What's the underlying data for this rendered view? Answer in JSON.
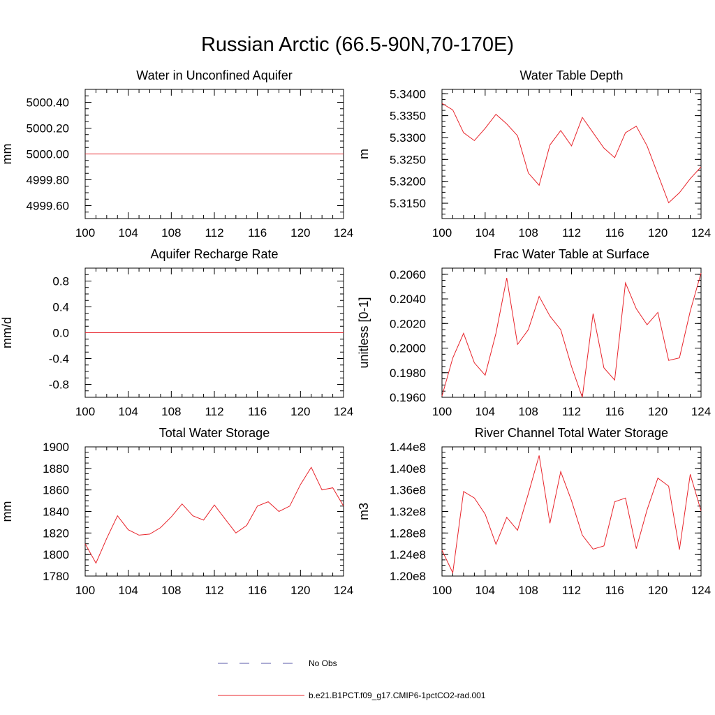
{
  "title": "Russian Arctic (66.5-90N,70-170E)",
  "legend": {
    "entries": [
      {
        "label": "No Obs",
        "color": "#5a5aa8",
        "dashed": true
      },
      {
        "label": "b.e21.B1PCT.f09_g17.CMIP6-1pctCO2-rad.001",
        "color": "#e8242b",
        "dashed": false
      }
    ]
  },
  "chart_data": [
    {
      "type": "line",
      "title": "Water in Unconfined Aquifer",
      "ylabel": "mm",
      "xlim": [
        100,
        124
      ],
      "ylim": [
        4999.5,
        5000.5
      ],
      "xticks": [
        100,
        104,
        108,
        112,
        116,
        120,
        124
      ],
      "yticks": [
        4999.6,
        4999.8,
        5000.0,
        5000.2,
        5000.4
      ],
      "yminor": [
        4999.5,
        4999.55,
        4999.6,
        4999.65,
        4999.7,
        4999.75,
        4999.8,
        4999.85,
        4999.9,
        4999.95,
        5000.0,
        5000.05,
        5000.1,
        5000.15,
        5000.2,
        5000.25,
        5000.3,
        5000.35,
        5000.4,
        5000.45,
        5000.5
      ],
      "ydecimals": 2,
      "series": [
        {
          "color": "#e8242b",
          "x": [
            100,
            101,
            102,
            103,
            104,
            105,
            106,
            107,
            108,
            109,
            110,
            111,
            112,
            113,
            114,
            115,
            116,
            117,
            118,
            119,
            120,
            121,
            122,
            123,
            124
          ],
          "y": [
            5000,
            5000,
            5000,
            5000,
            5000,
            5000,
            5000,
            5000,
            5000,
            5000,
            5000,
            5000,
            5000,
            5000,
            5000,
            5000,
            5000,
            5000,
            5000,
            5000,
            5000,
            5000,
            5000,
            5000,
            5000
          ]
        }
      ]
    },
    {
      "type": "line",
      "title": "Water Table Depth",
      "ylabel": "m",
      "xlim": [
        100,
        124
      ],
      "ylim": [
        5.3115,
        5.341
      ],
      "xticks": [
        100,
        104,
        108,
        112,
        116,
        120,
        124
      ],
      "yticks": [
        5.315,
        5.32,
        5.325,
        5.33,
        5.335,
        5.34
      ],
      "yminor": [
        5.3125,
        5.3137,
        5.315,
        5.3162,
        5.3175,
        5.3187,
        5.32,
        5.3212,
        5.3225,
        5.3237,
        5.325,
        5.3262,
        5.3275,
        5.3287,
        5.33,
        5.3312,
        5.3325,
        5.3337,
        5.335,
        5.3362,
        5.3375,
        5.3387,
        5.34
      ],
      "ydecimals": 4,
      "series": [
        {
          "color": "#e8242b",
          "x": [
            100,
            101,
            102,
            103,
            104,
            105,
            106,
            107,
            108,
            109,
            110,
            111,
            112,
            113,
            114,
            115,
            116,
            117,
            118,
            119,
            120,
            121,
            122,
            123,
            124
          ],
          "y": [
            5.3378,
            5.3363,
            5.3311,
            5.3293,
            5.3321,
            5.3353,
            5.3331,
            5.3304,
            5.3219,
            5.3191,
            5.3283,
            5.3316,
            5.3281,
            5.3346,
            5.3311,
            5.3276,
            5.3254,
            5.3311,
            5.3326,
            5.3281,
            5.3216,
            5.3151,
            5.3174,
            5.3206,
            5.3233
          ]
        }
      ]
    },
    {
      "type": "line",
      "title": "Aquifer Recharge Rate",
      "ylabel": "mm/d",
      "xlim": [
        100,
        124
      ],
      "ylim": [
        -1.0,
        1.0
      ],
      "xticks": [
        100,
        104,
        108,
        112,
        116,
        120,
        124
      ],
      "yticks": [
        -0.8,
        -0.4,
        0.0,
        0.4,
        0.8
      ],
      "yminor": [
        -1.0,
        -0.9,
        -0.8,
        -0.7,
        -0.6,
        -0.5,
        -0.4,
        -0.3,
        -0.2,
        -0.1,
        0.0,
        0.1,
        0.2,
        0.3,
        0.4,
        0.5,
        0.6,
        0.7,
        0.8,
        0.9,
        1.0
      ],
      "ydecimals": 1,
      "series": [
        {
          "color": "#e8242b",
          "x": [
            100,
            101,
            102,
            103,
            104,
            105,
            106,
            107,
            108,
            109,
            110,
            111,
            112,
            113,
            114,
            115,
            116,
            117,
            118,
            119,
            120,
            121,
            122,
            123,
            124
          ],
          "y": [
            0,
            0,
            0,
            0,
            0,
            0,
            0,
            0,
            0,
            0,
            0,
            0,
            0,
            0,
            0,
            0,
            0,
            0,
            0,
            0,
            0,
            0,
            0,
            0,
            0
          ]
        }
      ]
    },
    {
      "type": "line",
      "title": "Frac Water Table at Surface",
      "ylabel": "unitless [0-1]",
      "xlim": [
        100,
        124
      ],
      "ylim": [
        0.196,
        0.2065
      ],
      "xticks": [
        100,
        104,
        108,
        112,
        116,
        120,
        124
      ],
      "yticks": [
        0.196,
        0.198,
        0.2,
        0.202,
        0.204,
        0.206
      ],
      "yminor": [
        0.196,
        0.1965,
        0.197,
        0.1975,
        0.198,
        0.1985,
        0.199,
        0.1995,
        0.2,
        0.2005,
        0.201,
        0.2015,
        0.202,
        0.2025,
        0.203,
        0.2035,
        0.204,
        0.2045,
        0.205,
        0.2055,
        0.206,
        0.2065
      ],
      "ydecimals": 4,
      "series": [
        {
          "color": "#e8242b",
          "x": [
            100,
            101,
            102,
            103,
            104,
            105,
            106,
            107,
            108,
            109,
            110,
            111,
            112,
            113,
            114,
            115,
            116,
            117,
            118,
            119,
            120,
            121,
            122,
            123,
            124
          ],
          "y": [
            0.1961,
            0.1992,
            0.2012,
            0.1988,
            0.1978,
            0.2012,
            0.2057,
            0.2003,
            0.2015,
            0.2042,
            0.2026,
            0.2015,
            0.1985,
            0.196,
            0.2028,
            0.1984,
            0.1974,
            0.2053,
            0.2032,
            0.2019,
            0.2029,
            0.199,
            0.1992,
            0.203,
            0.2061
          ]
        }
      ]
    },
    {
      "type": "line",
      "title": "Total Water Storage",
      "ylabel": "mm",
      "xlim": [
        100,
        124
      ],
      "ylim": [
        1780,
        1900
      ],
      "xticks": [
        100,
        104,
        108,
        112,
        116,
        120,
        124
      ],
      "yticks": [
        1780,
        1800,
        1820,
        1840,
        1860,
        1880,
        1900
      ],
      "yminor": [
        1780,
        1785,
        1790,
        1795,
        1800,
        1805,
        1810,
        1815,
        1820,
        1825,
        1830,
        1835,
        1840,
        1845,
        1850,
        1855,
        1860,
        1865,
        1870,
        1875,
        1880,
        1885,
        1890,
        1895,
        1900
      ],
      "ydecimals": 0,
      "series": [
        {
          "color": "#e8242b",
          "x": [
            100,
            101,
            102,
            103,
            104,
            105,
            106,
            107,
            108,
            109,
            110,
            111,
            112,
            113,
            114,
            115,
            116,
            117,
            118,
            119,
            120,
            121,
            122,
            123,
            124
          ],
          "y": [
            1810,
            1792,
            1815,
            1836,
            1823,
            1818,
            1819,
            1825,
            1835,
            1847,
            1836,
            1832,
            1846,
            1833,
            1820,
            1827,
            1845,
            1849,
            1840,
            1845,
            1865,
            1881,
            1860,
            1862,
            1845
          ]
        }
      ]
    },
    {
      "type": "line",
      "title": "River Channel Total Water Storage",
      "ylabel": "m3",
      "xlim": [
        100,
        124
      ],
      "ylim": [
        120000000,
        144000000
      ],
      "xticks": [
        100,
        104,
        108,
        112,
        116,
        120,
        124
      ],
      "yticks": [
        120000000,
        124000000,
        128000000,
        132000000,
        136000000,
        140000000,
        144000000
      ],
      "ytick_labels": [
        "1.20e8",
        "1.24e8",
        "1.28e8",
        "1.32e8",
        "1.36e8",
        "1.40e8",
        "1.44e8"
      ],
      "yminor": [
        120000000,
        121000000,
        122000000,
        123000000,
        124000000,
        125000000,
        126000000,
        127000000,
        128000000,
        129000000,
        130000000,
        131000000,
        132000000,
        133000000,
        134000000,
        135000000,
        136000000,
        137000000,
        138000000,
        139000000,
        140000000,
        141000000,
        142000000,
        143000000,
        144000000
      ],
      "series": [
        {
          "color": "#e8242b",
          "x": [
            100,
            101,
            102,
            103,
            104,
            105,
            106,
            107,
            108,
            109,
            110,
            111,
            112,
            113,
            114,
            115,
            116,
            117,
            118,
            119,
            120,
            121,
            122,
            123,
            124
          ],
          "y": [
            124800000,
            120600000,
            135700000,
            134500000,
            131500000,
            125900000,
            130900000,
            128500000,
            135300000,
            142400000,
            129800000,
            139400000,
            134000000,
            127600000,
            125000000,
            125600000,
            133800000,
            134500000,
            125100000,
            132300000,
            138200000,
            136700000,
            124900000,
            138900000,
            132100000
          ]
        }
      ]
    }
  ]
}
